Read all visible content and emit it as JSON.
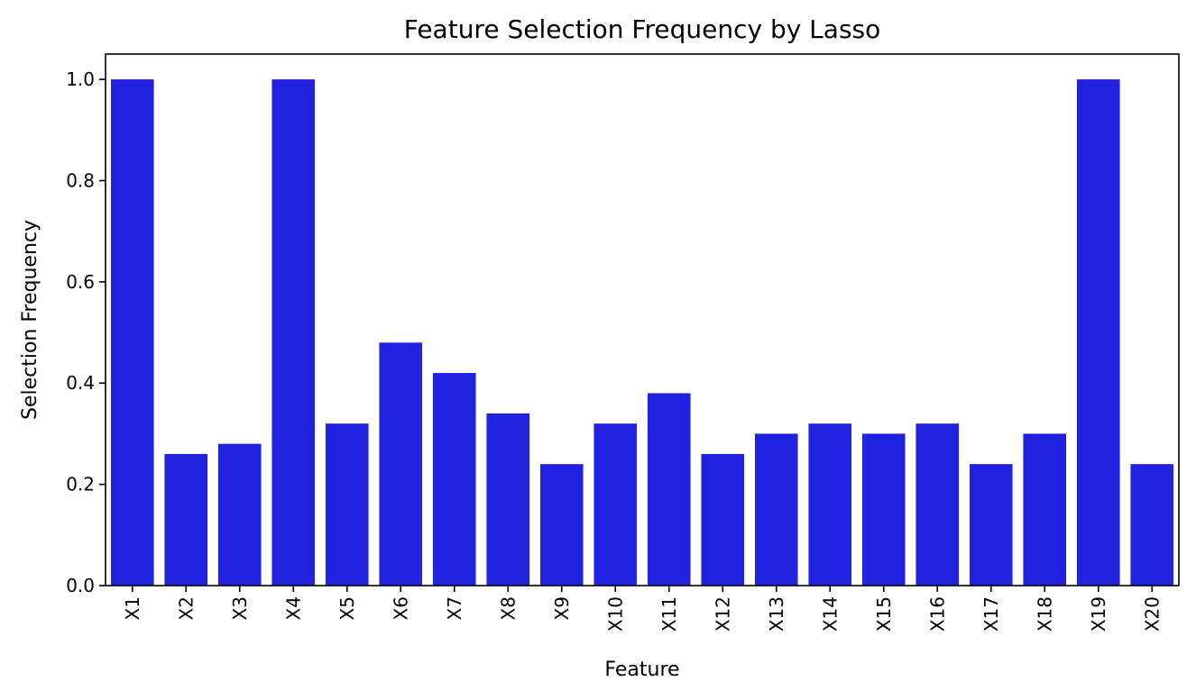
{
  "chart_data": {
    "type": "bar",
    "title": "Feature Selection Frequency by Lasso",
    "xlabel": "Feature",
    "ylabel": "Selection Frequency",
    "categories": [
      "X1",
      "X2",
      "X3",
      "X4",
      "X5",
      "X6",
      "X7",
      "X8",
      "X9",
      "X10",
      "X11",
      "X12",
      "X13",
      "X14",
      "X15",
      "X16",
      "X17",
      "X18",
      "X19",
      "X20"
    ],
    "values": [
      1.0,
      0.26,
      0.28,
      1.0,
      0.32,
      0.48,
      0.42,
      0.34,
      0.24,
      0.32,
      0.38,
      0.26,
      0.3,
      0.32,
      0.3,
      0.32,
      0.24,
      0.3,
      1.0,
      0.24
    ],
    "ylim": [
      0,
      1.05
    ],
    "yticks": [
      "0.0",
      "0.2",
      "0.4",
      "0.6",
      "0.8",
      "1.0"
    ],
    "bar_color": "#2121e0",
    "grid": false,
    "legend": "none"
  }
}
